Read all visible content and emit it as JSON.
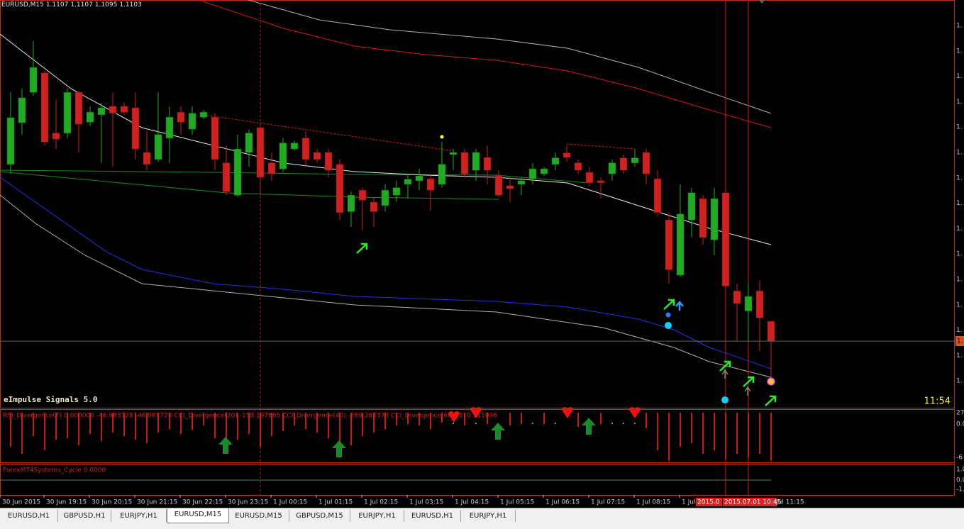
{
  "window": {
    "header_symbol": "EURUSD,M15",
    "indicator_name": "eImpulse Signals 5.0",
    "timer": "11:54",
    "price_tag": "1.1"
  },
  "chart_data": {
    "type": "candlestick",
    "ylim": [
      1.10896,
      1.11717
    ],
    "up_color": "#22aa22",
    "down_color": "#cc2222",
    "candles": [
      [
        1.11386,
        1.11531,
        1.11367,
        1.1148
      ],
      [
        1.1147,
        1.11539,
        1.11446,
        1.1152
      ],
      [
        1.11531,
        1.11634,
        1.11524,
        1.11581
      ],
      [
        1.1157,
        1.11574,
        1.11424,
        1.11431
      ],
      [
        1.11449,
        1.11517,
        1.11417,
        1.11437
      ],
      [
        1.11449,
        1.11539,
        1.11439,
        1.11531
      ],
      [
        1.11531,
        1.11534,
        1.1141,
        1.11467
      ],
      [
        1.11471,
        1.11503,
        1.11463,
        1.11491
      ],
      [
        1.11486,
        1.1151,
        1.11389,
        1.115
      ],
      [
        1.11503,
        1.11531,
        1.11381,
        1.11489
      ],
      [
        1.11503,
        1.1151,
        1.11486,
        1.11491
      ],
      [
        1.115,
        1.11531,
        1.11396,
        1.11417
      ],
      [
        1.1141,
        1.11453,
        1.11374,
        1.11386
      ],
      [
        1.11396,
        1.11531,
        1.11391,
        1.11446
      ],
      [
        1.11439,
        1.11503,
        1.11389,
        1.11481
      ],
      [
        1.11491,
        1.11503,
        1.11446,
        1.11471
      ],
      [
        1.11457,
        1.11503,
        1.11446,
        1.11489
      ],
      [
        1.11481,
        1.11496,
        1.11477,
        1.11491
      ],
      [
        1.11481,
        1.11489,
        1.11374,
        1.11396
      ],
      [
        1.11389,
        1.11424,
        1.11324,
        1.11331
      ],
      [
        1.11324,
        1.11446,
        1.1132,
        1.11417
      ],
      [
        1.1141,
        1.11456,
        1.11381,
        1.11449
      ],
      [
        1.1146,
        1.11463,
        1.11324,
        1.1136
      ],
      [
        1.11389,
        1.1141,
        1.11353,
        1.11367
      ],
      [
        1.11377,
        1.11439,
        1.1137,
        1.11429
      ],
      [
        1.11417,
        1.11434,
        1.11414,
        1.11429
      ],
      [
        1.11439,
        1.11453,
        1.11381,
        1.11396
      ],
      [
        1.1141,
        1.11417,
        1.11389,
        1.11396
      ],
      [
        1.1141,
        1.11417,
        1.1136,
        1.11374
      ],
      [
        1.11386,
        1.11396,
        1.11274,
        1.11289
      ],
      [
        1.11291,
        1.11331,
        1.1126,
        1.11324
      ],
      [
        1.11334,
        1.11339,
        1.11253,
        1.11314
      ],
      [
        1.1131,
        1.1132,
        1.1126,
        1.11291
      ],
      [
        1.11303,
        1.11346,
        1.11291,
        1.11334
      ],
      [
        1.11324,
        1.11353,
        1.1131,
        1.11339
      ],
      [
        1.11346,
        1.11367,
        1.11317,
        1.11356
      ],
      [
        1.11353,
        1.11377,
        1.11334,
        1.11363
      ],
      [
        1.11357,
        1.11367,
        1.11293,
        1.11334
      ],
      [
        1.11346,
        1.11431,
        1.11339,
        1.11386
      ],
      [
        1.11406,
        1.11417,
        1.11374,
        1.1141
      ],
      [
        1.1141,
        1.11417,
        1.1136,
        1.11367
      ],
      [
        1.11374,
        1.11417,
        1.11353,
        1.1141
      ],
      [
        1.114,
        1.11424,
        1.11346,
        1.11374
      ],
      [
        1.11363,
        1.11374,
        1.1132,
        1.11324
      ],
      [
        1.11343,
        1.1136,
        1.1131,
        1.11337
      ],
      [
        1.11346,
        1.1136,
        1.11324,
        1.11353
      ],
      [
        1.11357,
        1.11389,
        1.11346,
        1.11377
      ],
      [
        1.11367,
        1.11381,
        1.11363,
        1.11377
      ],
      [
        1.11386,
        1.1141,
        1.11374,
        1.11399
      ],
      [
        1.11409,
        1.11424,
        1.11391,
        1.114
      ],
      [
        1.11389,
        1.11396,
        1.11367,
        1.11374
      ],
      [
        1.1137,
        1.11381,
        1.11343,
        1.11349
      ],
      [
        1.11353,
        1.1136,
        1.11317,
        1.11349
      ],
      [
        1.11367,
        1.11396,
        1.11353,
        1.11389
      ],
      [
        1.11399,
        1.11406,
        1.11367,
        1.11374
      ],
      [
        1.11389,
        1.11417,
        1.11381,
        1.11399
      ],
      [
        1.1141,
        1.11417,
        1.11346,
        1.11367
      ],
      [
        1.11357,
        1.11374,
        1.11281,
        1.11289
      ],
      [
        1.11274,
        1.11289,
        1.11146,
        1.11174
      ],
      [
        1.11163,
        1.11346,
        1.1116,
        1.11286
      ],
      [
        1.11274,
        1.11339,
        1.11239,
        1.11329
      ],
      [
        1.11317,
        1.11324,
        1.11224,
        1.11239
      ],
      [
        1.11234,
        1.11339,
        1.11203,
        1.11317
      ],
      [
        1.11329,
        1.11334,
        1.11131,
        1.11141
      ],
      [
        1.11131,
        1.11146,
        1.11031,
        1.11106
      ],
      [
        1.11091,
        1.11146,
        1.11031,
        1.1112
      ],
      [
        1.11131,
        1.11153,
        1.1101,
        1.11077
      ],
      [
        1.1107,
        1.1107,
        1.1095,
        1.1103
      ]
    ]
  },
  "price_axis_labels": [
    "1.",
    "1.",
    "1.",
    "1.",
    "1.",
    "1.",
    "1.",
    "1.",
    "1.",
    "1.",
    "1.",
    "1.",
    "1.",
    "1.",
    "1."
  ],
  "rsi_window": {
    "label": "RSI_Divergence(7) 0.000000 -46.963728 -46.963728 CCI_Divergence(20) -158.197665 CCI_Divergence(40) -269.284373 CCI_Divergence(60) -310.311096",
    "axis_labels": [
      "27",
      "0.0",
      "-6"
    ]
  },
  "cycle_window": {
    "label": "ForexMT4Systems_Cycle 0.0000",
    "axis_labels": [
      "1.0",
      "0.0",
      "-1."
    ]
  },
  "time_axis": {
    "labels": [
      "30 Jun 2015",
      "30 Jun 19:15",
      "30 Jun 20:15",
      "30 Jun 21:15",
      "30 Jun 22:15",
      "30 Jun 23:15",
      "1 Jul 00:15",
      "1 Jul 01:15",
      "1 Jul 02:15",
      "1 Jul 03:15",
      "1 Jul 04:15",
      "1 Jul 05:15",
      "1 Jul 06:15",
      "1 Jul 07:15",
      "1 Jul 08:15",
      "1 Jul"
    ],
    "highlight": [
      "2015.0",
      "2015.07.01 10:45"
    ],
    "last": "Jul 11:15"
  },
  "tabs": [
    "EURUSD,H1",
    "GBPUSD,H1",
    "EURJPY,H1",
    "EURUSD,M15",
    "EURUSD,M15",
    "GBPUSD,M15",
    "EURJPY,H1",
    "EURUSD,H1",
    "EURJPY,H1"
  ]
}
